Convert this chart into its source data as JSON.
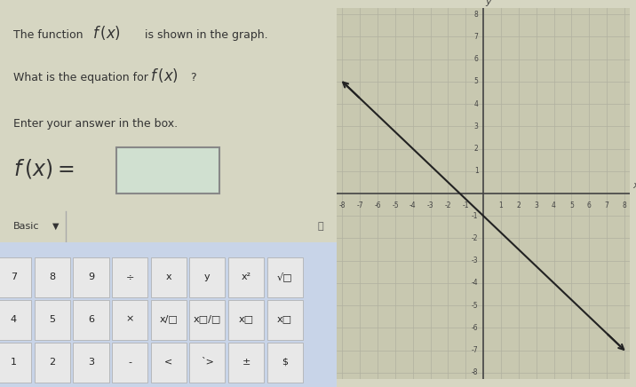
{
  "bg_color": "#d6d6c2",
  "left_panel_color": "#c8c8b0",
  "graph_bg_color": "#c8c8b0",
  "grid_color": "#b0b0a0",
  "axis_color": "#444444",
  "line_color": "#222222",
  "slope": -0.75,
  "intercept": -1.0,
  "x_min": -8,
  "x_max": 8,
  "y_min": -8,
  "y_max": 8,
  "basic_label": "Basic",
  "keyboard_bg": "#c8d4e8",
  "keyboard_key_bg": "#e8e8e8",
  "input_box_color": "#d0e0d0",
  "keyboard_top": [
    "7",
    "8",
    "9",
    "÷",
    "x",
    "y",
    "x²",
    "√□"
  ],
  "keyboard_mid": [
    "4",
    "5",
    "6",
    "×",
    "x/□",
    "x□/□",
    "x□",
    "x□"
  ],
  "keyboard_bot": [
    "1",
    "2",
    "3",
    "-",
    "<",
    "`>",
    "±",
    "$"
  ]
}
